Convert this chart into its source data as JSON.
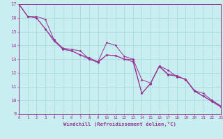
{
  "xlabel": "Windchill (Refroidissement éolien,°C)",
  "bg_color": "#c8eef0",
  "line_color": "#993399",
  "grid_color": "#aadddd",
  "xmin": 0,
  "xmax": 23,
  "ymin": 9,
  "ymax": 17,
  "series1_x": [
    0,
    1,
    2,
    3,
    4,
    5,
    6,
    7,
    8,
    9,
    10,
    11,
    12,
    13,
    14,
    15,
    16,
    17,
    18,
    19,
    20,
    21,
    22,
    23
  ],
  "series1_y": [
    17,
    16.1,
    16.1,
    15.9,
    14.4,
    13.8,
    13.7,
    13.6,
    13.0,
    12.8,
    14.2,
    14.0,
    13.2,
    13.0,
    11.5,
    11.25,
    12.5,
    12.2,
    11.7,
    11.55,
    10.7,
    10.5,
    10.0,
    9.6
  ],
  "series2_x": [
    0,
    1,
    2,
    3,
    4,
    5,
    6,
    7,
    8,
    9,
    10,
    11,
    12,
    13,
    14,
    15,
    16,
    17,
    18,
    19,
    20,
    21,
    22,
    23
  ],
  "series2_y": [
    17,
    16.1,
    16.0,
    15.2,
    14.4,
    13.7,
    13.6,
    13.3,
    13.0,
    12.75,
    13.3,
    13.25,
    13.0,
    12.8,
    10.5,
    11.2,
    12.5,
    11.9,
    11.8,
    11.5,
    10.7,
    10.3,
    9.95,
    9.55
  ],
  "series3_x": [
    0,
    1,
    2,
    3,
    4,
    5,
    6,
    7,
    8,
    9,
    10,
    11,
    12,
    13,
    14,
    15,
    16,
    17,
    18,
    19,
    20,
    21,
    22,
    23
  ],
  "series3_y": [
    17,
    16.1,
    16.0,
    15.2,
    14.3,
    13.75,
    13.6,
    13.3,
    13.1,
    12.8,
    13.3,
    13.25,
    13.0,
    12.95,
    10.5,
    11.25,
    12.45,
    11.85,
    11.75,
    11.5,
    10.65,
    10.3,
    9.9,
    9.5
  ],
  "ytick_fontsize": 5.0,
  "xtick_fontsize": 4.2,
  "xlabel_fontsize": 5.2
}
